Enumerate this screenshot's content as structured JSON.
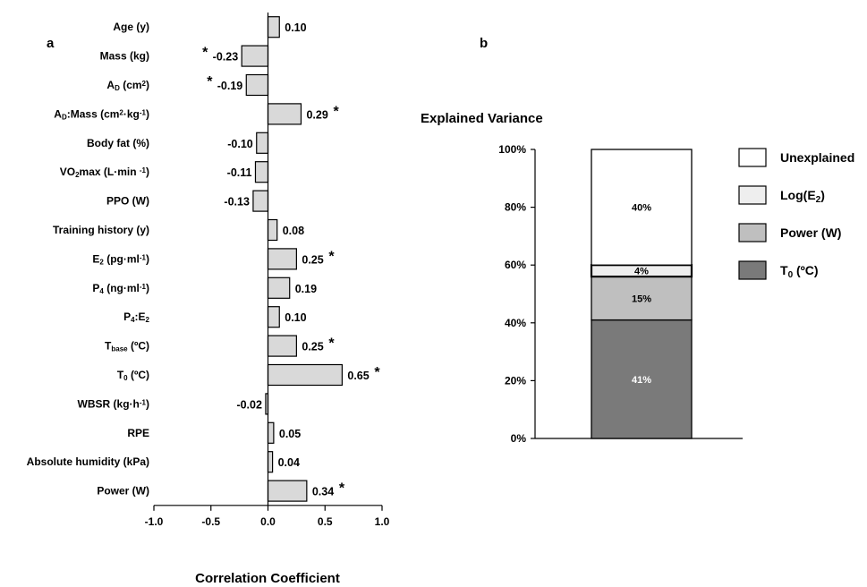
{
  "chart_data": [
    {
      "type": "bar",
      "orientation": "horizontal",
      "panel_label": "a",
      "xlabel": "Correlation Coefficient",
      "xlim": [
        -1.0,
        1.0
      ],
      "xticks": [
        "-1.0",
        "-0.5",
        "0.0",
        "0.5",
        "1.0"
      ],
      "categories": [
        {
          "main": "Age (y)"
        },
        {
          "main": "Mass (kg)"
        },
        {
          "main": "A",
          "sub": "D",
          "rest": " (cm",
          "sup": "2",
          "rest2": ")"
        },
        {
          "main": "A",
          "sub": "D",
          "rest": ":Mass (cm",
          "sup": "2",
          "rest2": "·kg",
          "sup2": "-1",
          "rest3": ")"
        },
        {
          "main": "Body fat (%)"
        },
        {
          "main": "VO",
          "sub": "2",
          "rest": "max (L·min ",
          "sup": "-1",
          "rest2": ")"
        },
        {
          "main": "PPO (W)"
        },
        {
          "main": "Training history (y)"
        },
        {
          "main": "E",
          "sub": "2",
          "rest": " (pg·ml",
          "sup": "-1",
          "rest2": ")"
        },
        {
          "main": "P",
          "sub": "4",
          "rest": " (ng·ml",
          "sup": "-1",
          "rest2": ")"
        },
        {
          "main": "P",
          "sub": "4",
          "rest": ":E",
          "sub2": "2"
        },
        {
          "main": "T",
          "sub": "base",
          "rest": " (ºC)"
        },
        {
          "main": "T",
          "sub": "0",
          "rest": " (ºC)"
        },
        {
          "main": "WBSR (kg·h",
          "sup": "-1",
          "rest2": ")"
        },
        {
          "main": "RPE"
        },
        {
          "main": "Absolute humidity (kPa)"
        },
        {
          "main": "Power (W)"
        }
      ],
      "values": [
        0.1,
        -0.23,
        -0.19,
        0.29,
        -0.1,
        -0.11,
        -0.13,
        0.08,
        0.25,
        0.19,
        0.1,
        0.25,
        0.65,
        -0.02,
        0.05,
        0.04,
        0.34
      ],
      "value_labels": [
        "0.10",
        "-0.23",
        "-0.19",
        "0.29",
        "-0.10",
        "-0.11",
        "-0.13",
        "0.08",
        "0.25",
        "0.19",
        "0.10",
        "0.25",
        "0.65",
        "-0.02",
        "0.05",
        "0.04",
        "0.34"
      ],
      "significant": [
        false,
        true,
        true,
        true,
        false,
        false,
        false,
        false,
        true,
        false,
        false,
        true,
        true,
        false,
        false,
        false,
        true
      ],
      "significance_marker": "*",
      "bar_color": "#d9d9d9"
    },
    {
      "type": "bar",
      "stacked": true,
      "panel_label": "b",
      "title": "Explained Variance",
      "ylim": [
        0,
        100
      ],
      "yticks": [
        "0%",
        "20%",
        "40%",
        "60%",
        "80%",
        "100%"
      ],
      "series": [
        {
          "name": "T",
          "name_sub": "0",
          "name_rest": " (ºC)",
          "value": 41,
          "label": "41%",
          "color": "#7a7a7a",
          "label_color": "#ffffff"
        },
        {
          "name": "Power (W)",
          "value": 15,
          "label": "15%",
          "color": "#bfbfbf",
          "label_color": "#000000"
        },
        {
          "name": "Log(E",
          "name_sub": "2",
          "name_rest": ")",
          "value": 4,
          "label": "4%",
          "color": "#eeeeee",
          "label_color": "#000000"
        },
        {
          "name": "Unexplained",
          "value": 40,
          "label": "40%",
          "color": "#ffffff",
          "label_color": "#000000"
        }
      ],
      "legend_order": [
        3,
        2,
        1,
        0
      ],
      "legend_position": "right"
    }
  ]
}
